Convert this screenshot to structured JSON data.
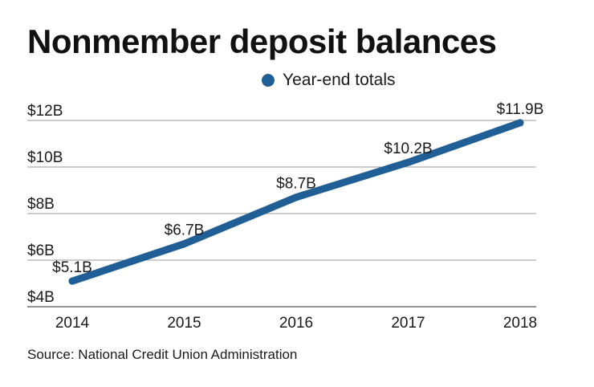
{
  "title": "Nonmember deposit balances",
  "source": "Source: National Credit Union Administration",
  "colors": {
    "series": "#1f5f96",
    "grid": "#9a9a9a",
    "text": "#1a1a1a"
  },
  "chart_data": {
    "type": "line",
    "title": "Nonmember deposit balances",
    "categories": [
      "2014",
      "2015",
      "2016",
      "2017",
      "2018"
    ],
    "series": [
      {
        "name": "Year-end totals",
        "values": [
          5.1,
          6.7,
          8.7,
          10.2,
          11.9
        ],
        "labels": [
          "$5.1B",
          "$6.7B",
          "$8.7B",
          "$10.2B",
          "$11.9B"
        ]
      }
    ],
    "y_ticks": [
      {
        "value": 12,
        "label": "$12B"
      },
      {
        "value": 10,
        "label": "$10B"
      },
      {
        "value": 8,
        "label": "$8B"
      },
      {
        "value": 6,
        "label": "$6B"
      },
      {
        "value": 4,
        "label": "$4B"
      }
    ],
    "ylim": [
      4,
      12
    ],
    "xlabel": "",
    "ylabel": "",
    "grid": true,
    "legend": "top-center"
  }
}
